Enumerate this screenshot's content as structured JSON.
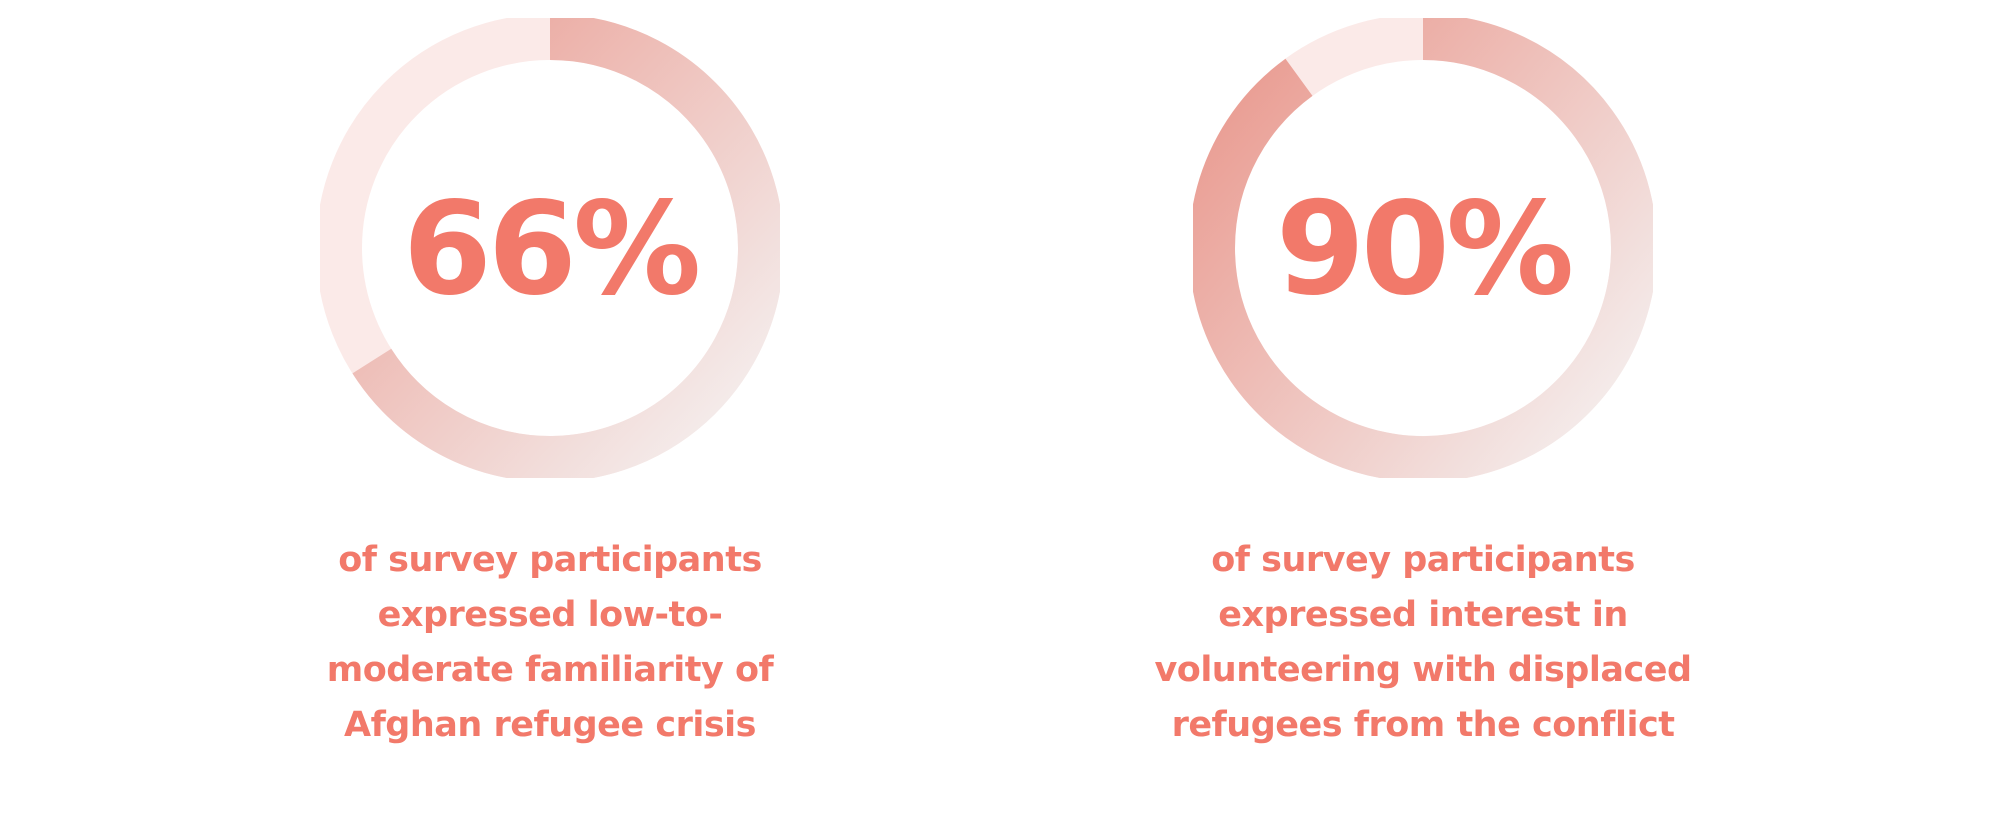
{
  "colors": {
    "accent": "#F2796A",
    "track": "#FBEAE8",
    "arc_strong": "#EA9E94",
    "arc_fade": "#F5F4F4"
  },
  "chart_data": [
    {
      "type": "pie",
      "value_label": "66%",
      "values": [
        66,
        34
      ],
      "caption_lines": [
        "of survey participants",
        "expressed low-to-",
        "moderate familiarity of",
        "Afghan refugee crisis"
      ]
    },
    {
      "type": "pie",
      "value_label": "90%",
      "values": [
        90,
        10
      ],
      "caption_lines": [
        "of survey participants",
        "expressed interest in",
        "volunteering with displaced",
        "refugees from the conflict"
      ]
    }
  ]
}
